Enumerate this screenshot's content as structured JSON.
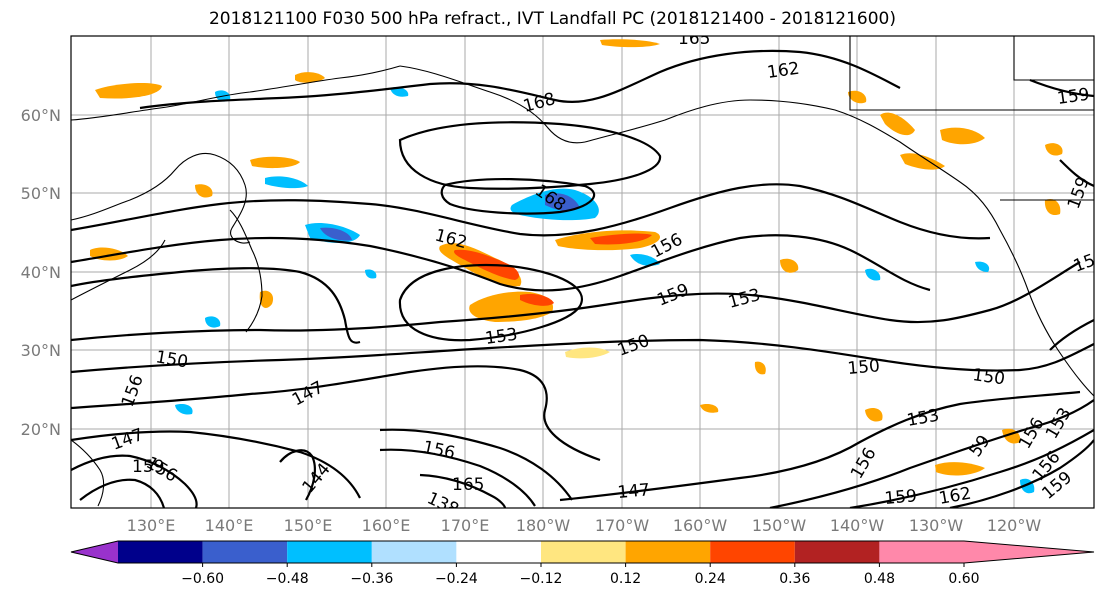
{
  "title": "2018121100 F030 500 hPa refract., IVT Landfall PC (2018121400 - 2018121600)",
  "lat_labels": [
    "60°N",
    "50°N",
    "40°N",
    "30°N",
    "20°N"
  ],
  "lon_labels": [
    "130°E",
    "140°E",
    "150°E",
    "160°E",
    "170°E",
    "180°W",
    "170°W",
    "160°W",
    "150°W",
    "140°W",
    "130°W",
    "120°W"
  ],
  "contour_labels": [
    "165",
    "162",
    "159",
    "168",
    "168",
    "162",
    "156",
    "159",
    "153",
    "153",
    "150",
    "150",
    "150",
    "150",
    "147",
    "147",
    "156",
    "144",
    "147",
    "159",
    "156",
    "156",
    "165",
    "138",
    "156",
    "159",
    "162",
    "156",
    "153",
    "59",
    "156",
    "153",
    "159",
    "159",
    "15"
  ],
  "colorbar": {
    "ticks": [
      "−0.60",
      "−0.48",
      "−0.36",
      "−0.24",
      "−0.12",
      "0.12",
      "0.24",
      "0.36",
      "0.48",
      "0.60"
    ],
    "colors": [
      "#9932cc",
      "#00008b",
      "#3a5fcd",
      "#00bfff",
      "#b0e0ff",
      "#ffffff",
      "#ffe680",
      "#ffa500",
      "#ff4500",
      "#b22222",
      "#ff88aa"
    ]
  }
}
